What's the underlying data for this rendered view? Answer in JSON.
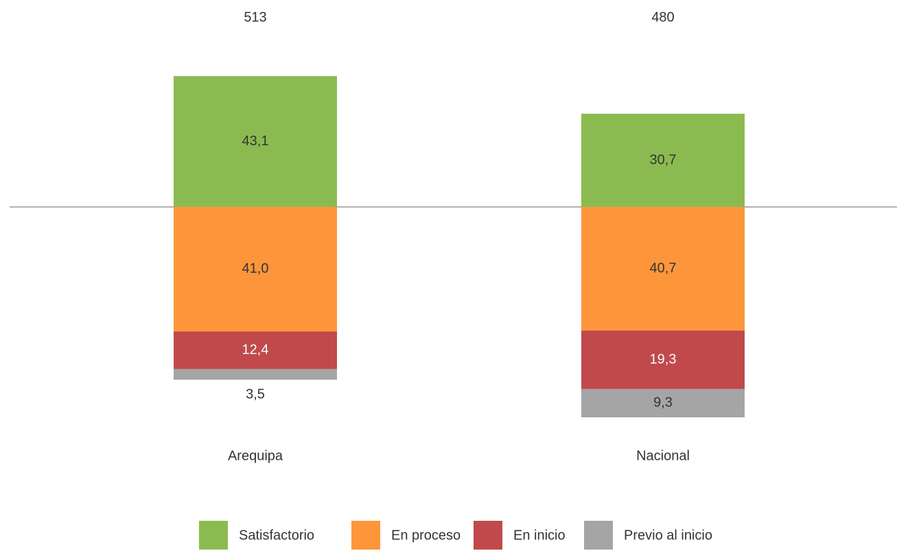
{
  "chart_data": {
    "type": "diverging_bar",
    "categories": [
      "Arequipa",
      "Nacional"
    ],
    "top_labels": [
      513,
      480
    ],
    "series": [
      {
        "name": "Satisfactorio",
        "color": "#8bbb50",
        "side": "above",
        "label_color": "#333333",
        "values": [
          43.1,
          30.7
        ],
        "value_labels": [
          "43,1",
          "30,7"
        ]
      },
      {
        "name": "En proceso",
        "color": "#fd963b",
        "side": "below",
        "label_color": "#333333",
        "values": [
          41.0,
          40.7
        ],
        "value_labels": [
          "41,0",
          "40,7"
        ]
      },
      {
        "name": "En inicio",
        "color": "#c0494b",
        "side": "below",
        "label_color": "#ffffff",
        "values": [
          12.4,
          19.3
        ],
        "value_labels": [
          "12,4",
          "19,3"
        ]
      },
      {
        "name": "Previo al inicio",
        "color": "#a5a5a5",
        "side": "below",
        "label_color": "#333333",
        "values": [
          3.5,
          9.3
        ],
        "value_labels": [
          "3,5",
          "9,3"
        ]
      }
    ]
  }
}
